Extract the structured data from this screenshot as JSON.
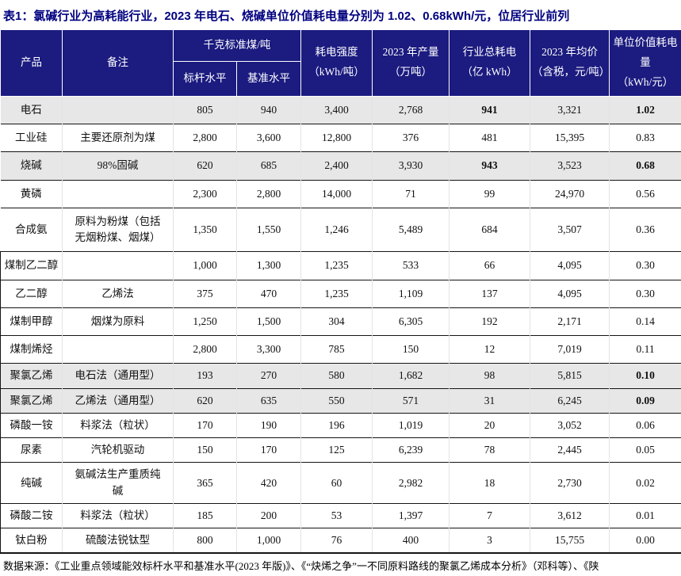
{
  "title": "表1：氯碱行业为高耗能行业，2023 年电石、烧碱单位价值耗电量分别为 1.02、0.68kWh/元，位居行业前列",
  "colors": {
    "header_bg": "#1b1b80",
    "title_text": "#00007f",
    "highlight_row_bg": "#e7e7e7"
  },
  "table": {
    "header": {
      "product": "产品",
      "note": "备注",
      "coal_group": "千克标准煤/吨",
      "benchmark": "标杆水平",
      "baseline": "基准水平",
      "intensity": "耗电强度\n（kWh/吨）",
      "output": "2023 年产量\n（万吨）",
      "total": "行业总耗电\n（亿 kWh）",
      "price": "2023 年均价\n（含税，元/吨）",
      "unit_value": "单位价值耗电量\n（kWh/元）"
    },
    "rows": [
      {
        "product": "电石",
        "note": "",
        "benchmark": "805",
        "baseline": "940",
        "intensity": "3,400",
        "output": "2,768",
        "total": "941",
        "price": "3,321",
        "unit": "1.02",
        "highlight": true,
        "bold_total": true,
        "bold_unit": true
      },
      {
        "product": "工业硅",
        "note": "主要还原剂为煤",
        "benchmark": "2,800",
        "baseline": "3,600",
        "intensity": "12,800",
        "output": "376",
        "total": "481",
        "price": "15,395",
        "unit": "0.83",
        "highlight": false,
        "bold_total": false,
        "bold_unit": false
      },
      {
        "product": "烧碱",
        "note": "98%固碱",
        "benchmark": "620",
        "baseline": "685",
        "intensity": "2,400",
        "output": "3,930",
        "total": "943",
        "price": "3,523",
        "unit": "0.68",
        "highlight": true,
        "bold_total": true,
        "bold_unit": true
      },
      {
        "product": "黄磷",
        "note": "",
        "benchmark": "2,300",
        "baseline": "2,800",
        "intensity": "14,000",
        "output": "71",
        "total": "99",
        "price": "24,970",
        "unit": "0.56",
        "highlight": false,
        "bold_total": false,
        "bold_unit": false
      },
      {
        "product": "合成氨",
        "note": "原料为粉煤（包括\n无烟粉煤、烟煤）",
        "benchmark": "1,350",
        "baseline": "1,550",
        "intensity": "1,246",
        "output": "5,489",
        "total": "684",
        "price": "3,507",
        "unit": "0.36",
        "highlight": false,
        "bold_total": false,
        "bold_unit": false
      },
      {
        "product": "煤制乙二醇",
        "note": "",
        "benchmark": "1,000",
        "baseline": "1,300",
        "intensity": "1,235",
        "output": "533",
        "total": "66",
        "price": "4,095",
        "unit": "0.30",
        "highlight": false,
        "bold_total": false,
        "bold_unit": false
      },
      {
        "product": "乙二醇",
        "note": "乙烯法",
        "benchmark": "375",
        "baseline": "470",
        "intensity": "1,235",
        "output": "1,109",
        "total": "137",
        "price": "4,095",
        "unit": "0.30",
        "highlight": false,
        "bold_total": false,
        "bold_unit": false
      },
      {
        "product": "煤制甲醇",
        "note": "烟煤为原料",
        "benchmark": "1,250",
        "baseline": "1,500",
        "intensity": "304",
        "output": "6,305",
        "total": "192",
        "price": "2,171",
        "unit": "0.14",
        "highlight": false,
        "bold_total": false,
        "bold_unit": false
      },
      {
        "product": "煤制烯烃",
        "note": "",
        "benchmark": "2,800",
        "baseline": "3,300",
        "intensity": "785",
        "output": "150",
        "total": "12",
        "price": "7,019",
        "unit": "0.11",
        "highlight": false,
        "bold_total": false,
        "bold_unit": false
      },
      {
        "product": "聚氯乙烯",
        "note": "电石法（通用型）",
        "benchmark": "193",
        "baseline": "270",
        "intensity": "580",
        "output": "1,682",
        "total": "98",
        "price": "5,815",
        "unit": "0.10",
        "highlight": true,
        "bold_total": false,
        "bold_unit": true
      },
      {
        "product": "聚氯乙烯",
        "note": "乙烯法（通用型）",
        "benchmark": "620",
        "baseline": "635",
        "intensity": "550",
        "output": "571",
        "total": "31",
        "price": "6,245",
        "unit": "0.09",
        "highlight": true,
        "bold_total": false,
        "bold_unit": true
      },
      {
        "product": "磷酸一铵",
        "note": "料浆法（粒状）",
        "benchmark": "170",
        "baseline": "190",
        "intensity": "196",
        "output": "1,019",
        "total": "20",
        "price": "3,052",
        "unit": "0.06",
        "highlight": false,
        "bold_total": false,
        "bold_unit": false
      },
      {
        "product": "尿素",
        "note": "汽轮机驱动",
        "benchmark": "150",
        "baseline": "170",
        "intensity": "125",
        "output": "6,239",
        "total": "78",
        "price": "2,445",
        "unit": "0.05",
        "highlight": false,
        "bold_total": false,
        "bold_unit": false
      },
      {
        "product": "纯碱",
        "note": "氨碱法生产重质纯\n碱",
        "benchmark": "365",
        "baseline": "420",
        "intensity": "60",
        "output": "2,982",
        "total": "18",
        "price": "2,730",
        "unit": "0.02",
        "highlight": false,
        "bold_total": false,
        "bold_unit": false
      },
      {
        "product": "磷酸二铵",
        "note": "料浆法（粒状）",
        "benchmark": "185",
        "baseline": "200",
        "intensity": "53",
        "output": "1,397",
        "total": "7",
        "price": "3,612",
        "unit": "0.01",
        "highlight": false,
        "bold_total": false,
        "bold_unit": false
      },
      {
        "product": "钛白粉",
        "note": "硫酸法锐钛型",
        "benchmark": "800",
        "baseline": "1,000",
        "intensity": "76",
        "output": "400",
        "total": "3",
        "price": "15,755",
        "unit": "0.00",
        "highlight": false,
        "bold_total": false,
        "bold_unit": false
      }
    ]
  },
  "footer": "数据来源：《工业重点领域能效标杆水平和基准水平(2023 年版)》、《“炔烯之争”一不同原料路线的聚氯乙烯成本分析》（邓科等）、《陕"
}
